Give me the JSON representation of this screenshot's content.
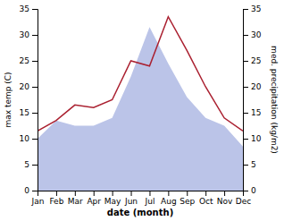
{
  "chart_data": {
    "type": "line",
    "categories": [
      "Jan",
      "Feb",
      "Mar",
      "Apr",
      "May",
      "Jun",
      "Jul",
      "Aug",
      "Sep",
      "Oct",
      "Nov",
      "Dec"
    ],
    "xlabel": "date (month)",
    "ylabel": "max temp (C)",
    "y2label": "med. precipitation (kg/m2)",
    "ylim": [
      0,
      35
    ],
    "yticks": [
      0,
      5,
      10,
      15,
      20,
      25,
      30,
      35
    ],
    "y2lim": [
      0,
      35
    ],
    "y2ticks": [
      0,
      5,
      10,
      15,
      20,
      25,
      30,
      35
    ],
    "series": [
      {
        "type": "area",
        "axis": "y2",
        "color": "#bbc4e8",
        "values": [
          10.0,
          13.5,
          12.5,
          12.5,
          14.0,
          22.0,
          31.5,
          24.5,
          18.0,
          14.0,
          12.5,
          8.5
        ]
      },
      {
        "type": "line",
        "color": "#aa2030",
        "values": [
          11.5,
          13.5,
          16.5,
          16.0,
          17.5,
          25.0,
          24.0,
          33.5,
          27.0,
          20.0,
          14.0,
          11.5
        ]
      }
    ]
  }
}
